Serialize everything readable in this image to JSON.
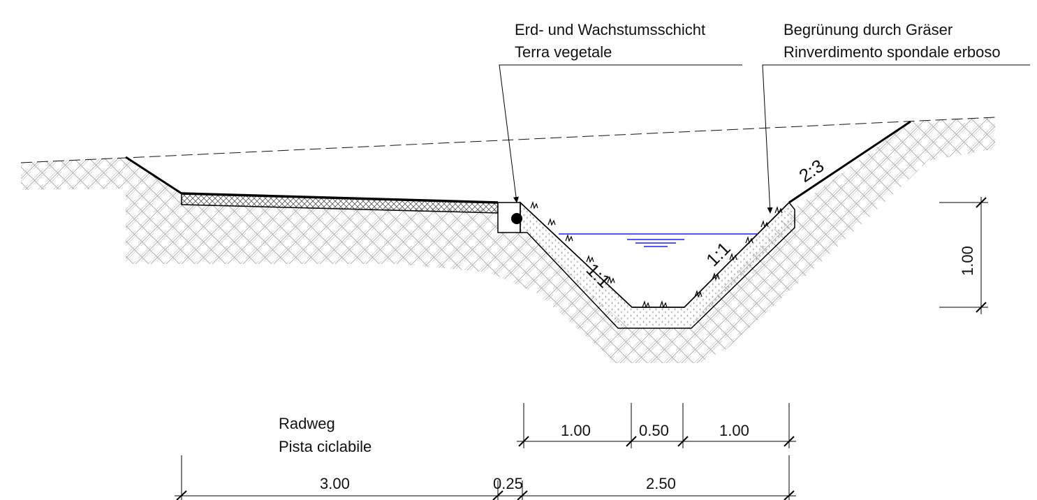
{
  "annotations": {
    "topsoil_de": "Erd- und Wachstumsschicht",
    "topsoil_it": "Terra vegetale",
    "grass_de": "Begrünung durch Gräser",
    "grass_it": "Rinverdimento spondale erboso"
  },
  "cycle_path": {
    "label_de": "Radweg",
    "label_it": "Pista ciclabile"
  },
  "slopes": {
    "left_inner": "1:1",
    "right_inner": "1:1",
    "right_outer": "2:3"
  },
  "dimensions": {
    "depth": "1.00",
    "top_segments": [
      "1.00",
      "0.50",
      "1.00"
    ],
    "bottom_segments": [
      "3.00",
      "0.25",
      "2.50"
    ]
  },
  "colors": {
    "water": "#1a1aff",
    "line": "#000000",
    "hatch": "#9a9a9a"
  }
}
